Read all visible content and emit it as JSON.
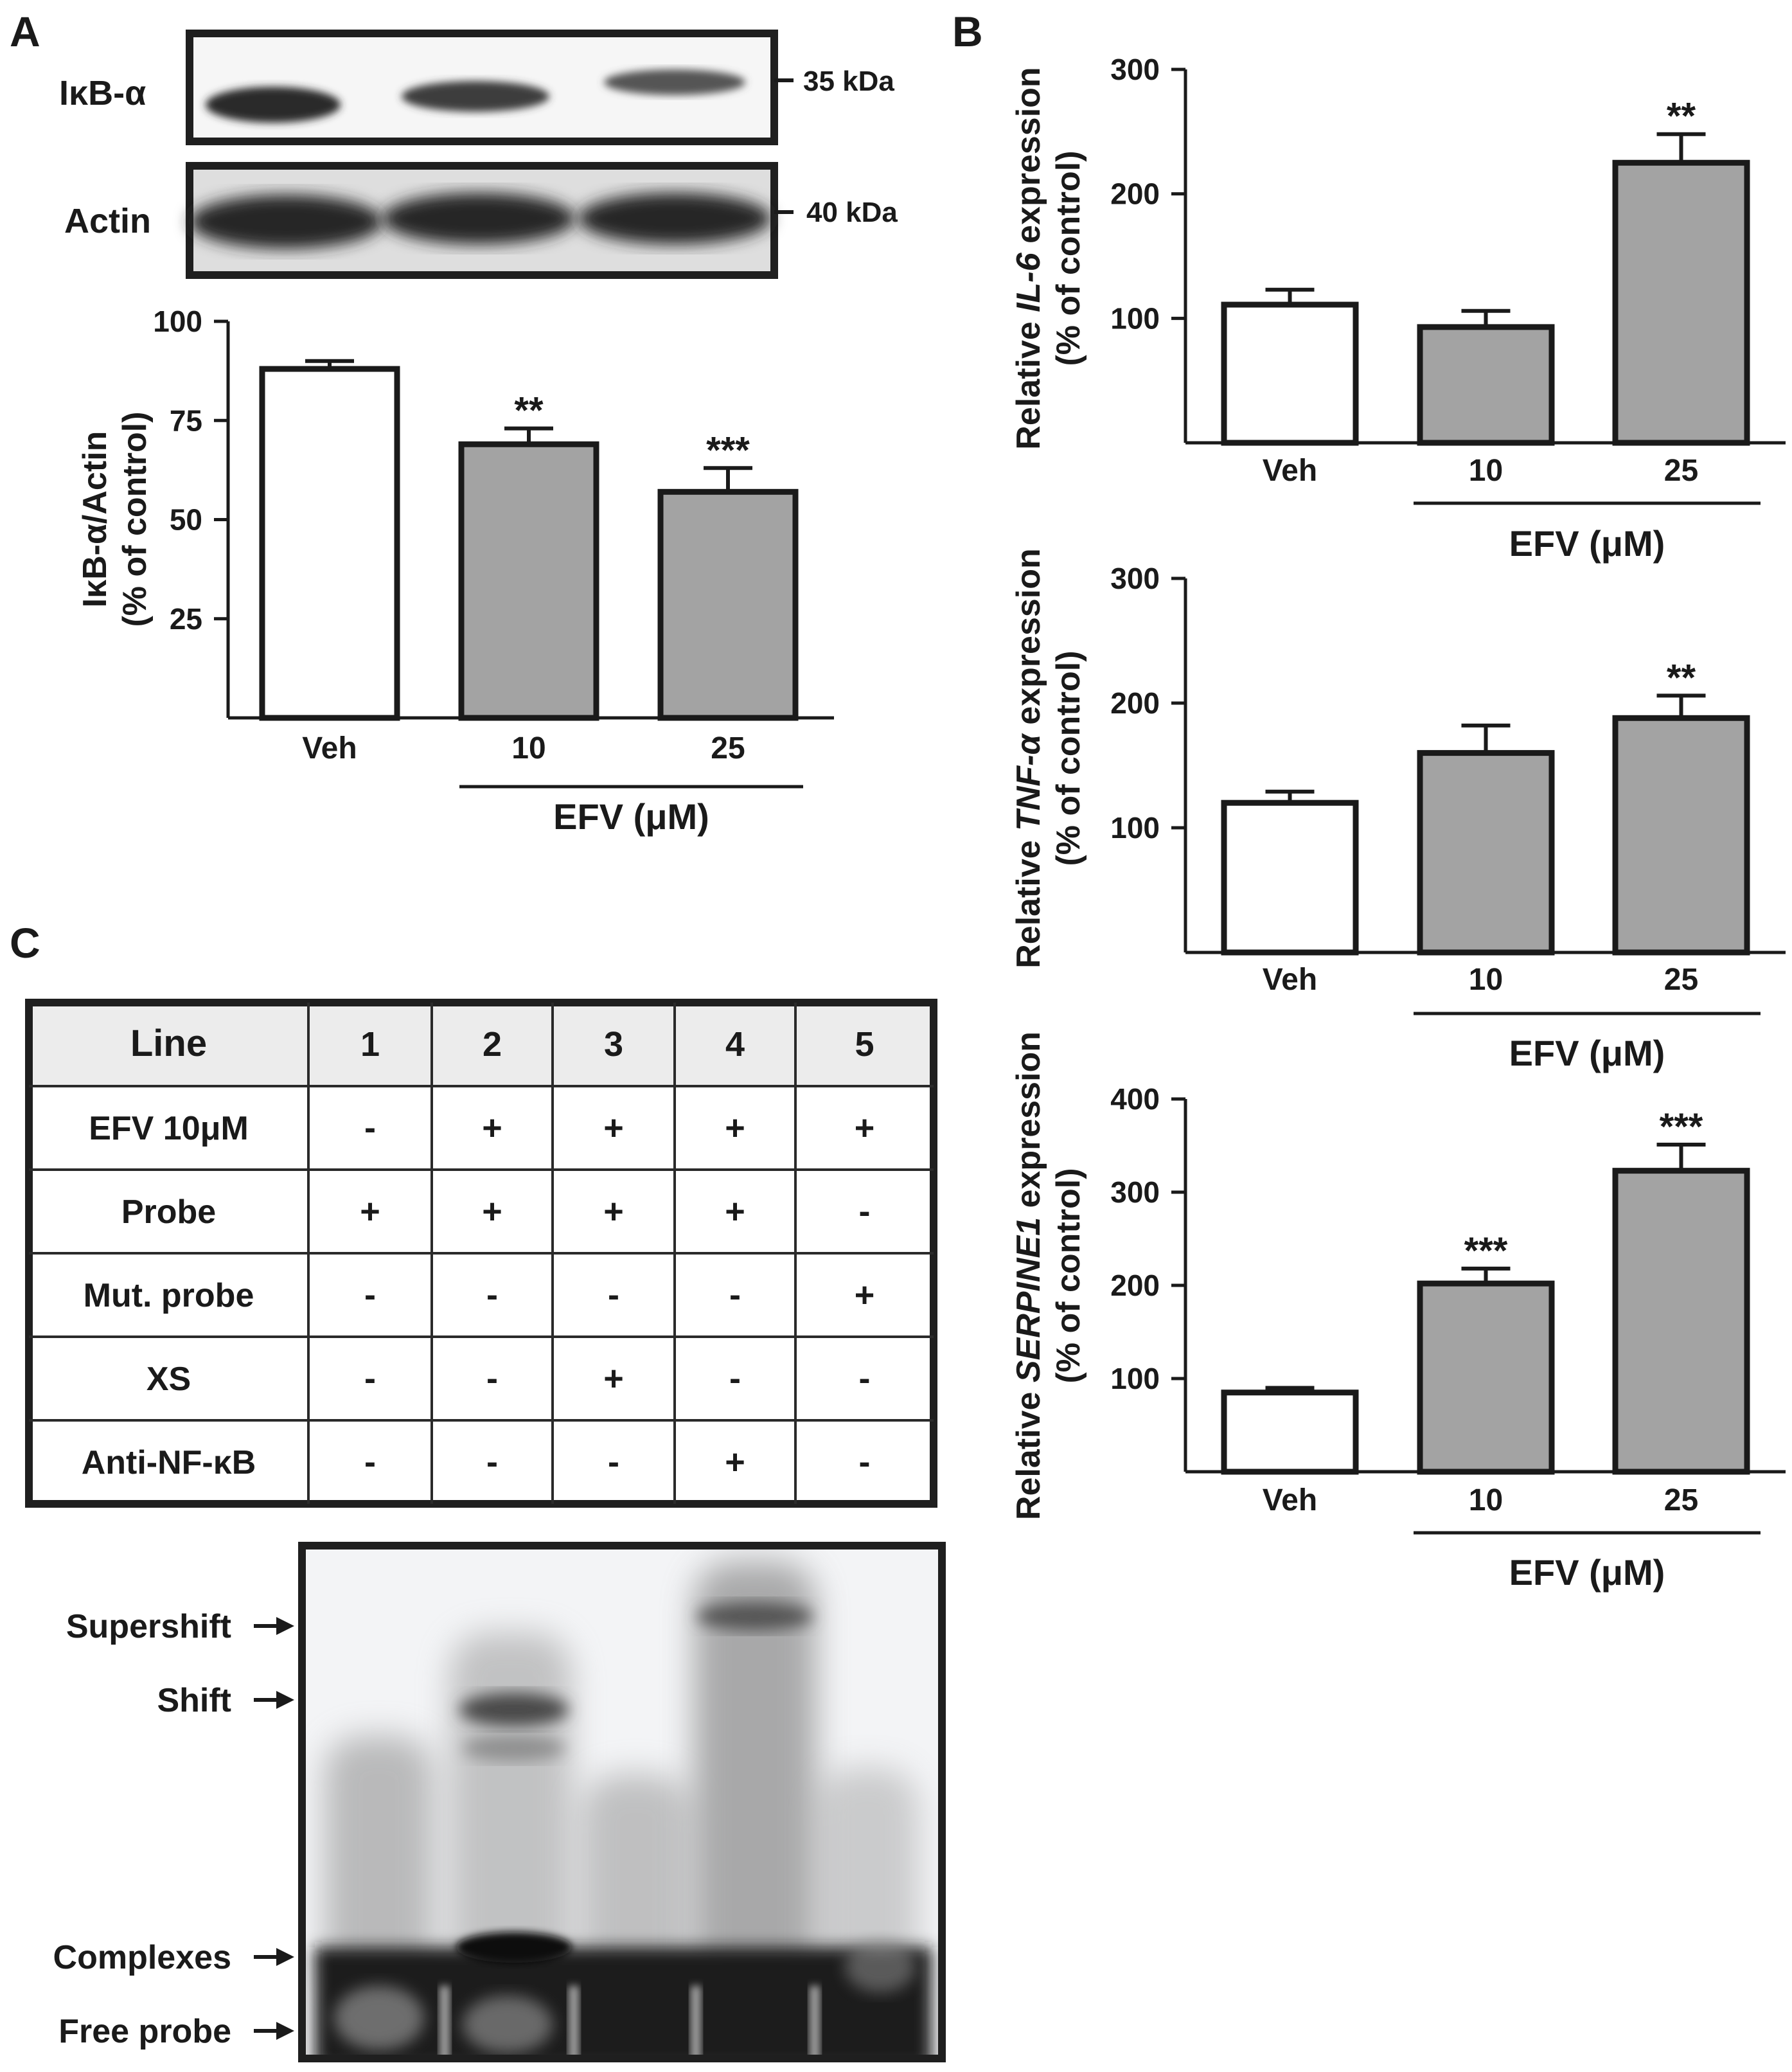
{
  "panels": {
    "A": {
      "letter": "A",
      "blot_labels": [
        "IκB-α",
        "Actin"
      ],
      "size_markers": [
        "35 kDa",
        "40 kDa"
      ]
    },
    "B": {
      "letter": "B"
    },
    "C": {
      "letter": "C",
      "table": {
        "header": [
          "Line",
          "1",
          "2",
          "3",
          "4",
          "5"
        ],
        "rows": [
          [
            "EFV 10μM",
            "-",
            "+",
            "+",
            "+",
            "+"
          ],
          [
            "Probe",
            "+",
            "+",
            "+",
            "+",
            "-"
          ],
          [
            "Mut. probe",
            "-",
            "-",
            "-",
            "-",
            "+"
          ],
          [
            "XS",
            "-",
            "-",
            "+",
            "-",
            "-"
          ],
          [
            "Anti-NF-κB",
            "-",
            "-",
            "-",
            "+",
            "-"
          ]
        ]
      },
      "gel_labels": [
        "Supershift",
        "Shift",
        "Complexes",
        "Free probe"
      ]
    }
  },
  "group_label": "EFV (μM)",
  "colors": {
    "vehicle": "#ffffff",
    "treated": "#a3a3a3",
    "ink": "#1a1a1a"
  },
  "chart_data": [
    {
      "id": "ikba",
      "type": "bar",
      "categories": [
        "Veh",
        "10",
        "25"
      ],
      "values": [
        88,
        69,
        57
      ],
      "errors": [
        2,
        4,
        6
      ],
      "significance": [
        "",
        "**",
        "***"
      ],
      "ylabel": "IκB-α/Actin\n(% of control)",
      "yticks": [
        25,
        50,
        75,
        100
      ],
      "ylim": [
        0,
        100
      ],
      "grid": false
    },
    {
      "id": "il6",
      "type": "bar",
      "categories": [
        "Veh",
        "10",
        "25"
      ],
      "values": [
        111,
        93,
        225
      ],
      "errors": [
        12,
        13,
        23
      ],
      "significance": [
        "",
        "",
        "**"
      ],
      "ylabel_parts": [
        "Relative ",
        "IL-6",
        " expression"
      ],
      "ylabel_line2": "(% of control)",
      "yticks": [
        100,
        200,
        300
      ],
      "ylim": [
        0,
        300
      ],
      "grid": false
    },
    {
      "id": "tnfa",
      "type": "bar",
      "categories": [
        "Veh",
        "10",
        "25"
      ],
      "values": [
        120,
        160,
        188
      ],
      "errors": [
        9,
        22,
        18
      ],
      "significance": [
        "",
        "",
        "**"
      ],
      "ylabel_parts": [
        "Relative ",
        "TNF-α",
        " expression"
      ],
      "ylabel_line2": "(% of control)",
      "yticks": [
        100,
        200,
        300
      ],
      "ylim": [
        0,
        300
      ],
      "grid": false
    },
    {
      "id": "serpine1",
      "type": "bar",
      "categories": [
        "Veh",
        "10",
        "25"
      ],
      "values": [
        85,
        202,
        323
      ],
      "errors": [
        5,
        16,
        28
      ],
      "significance": [
        "",
        "***",
        "***"
      ],
      "ylabel_parts": [
        "Relative ",
        "SERPINE1",
        " expression"
      ],
      "ylabel_line2": "(% of control)",
      "yticks": [
        100,
        200,
        300,
        400
      ],
      "ylim": [
        0,
        400
      ],
      "grid": false
    }
  ]
}
